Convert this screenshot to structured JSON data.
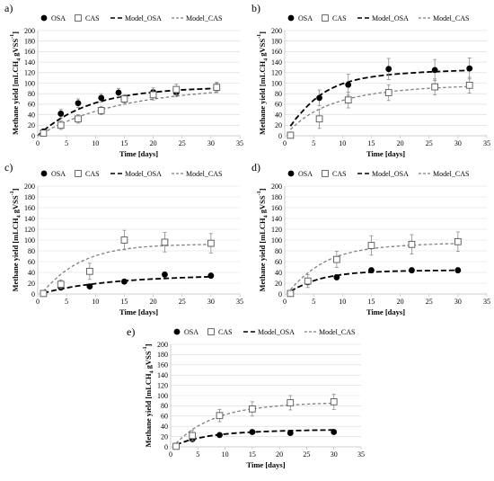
{
  "colors": {
    "osa": "#000000",
    "cas": "#808080",
    "grid": "#d9d9d9",
    "axis": "#bfbfbf",
    "error": "#8c8c8c"
  },
  "marker_styles": {
    "osa": "filled-circle",
    "cas": "open-square"
  },
  "chart_data": [
    {
      "type": "scatter",
      "panel": "a)",
      "xlabel": "Time [days]",
      "ylabel": "Methane yield [mLCH",
      "ylabel_sub": "4",
      "ylabel_tail": " gVSS",
      "ylabel_sup": "-1",
      "ylabel_end": "]",
      "xlim": [
        0,
        35
      ],
      "ylim": [
        0,
        200
      ],
      "xticks": [
        "0",
        "5",
        "10",
        "15",
        "20",
        "25",
        "30",
        "35"
      ],
      "yticks": [
        "0",
        "20",
        "40",
        "60",
        "80",
        "100",
        "120",
        "140",
        "160",
        "180",
        "200"
      ],
      "legend": [
        "OSA",
        "CAS",
        "Model_OSA",
        "Model_CAS"
      ],
      "legend_position": "top",
      "grid": true,
      "series": [
        {
          "name": "OSA",
          "x": [
            1,
            4,
            7,
            11,
            14,
            20,
            24,
            31
          ],
          "y": [
            8,
            42,
            62,
            72,
            82,
            83,
            82,
            92
          ],
          "err": [
            5,
            8,
            8,
            8,
            8,
            8,
            8,
            8
          ]
        },
        {
          "name": "CAS",
          "x": [
            1,
            4,
            7,
            11,
            15,
            20,
            24,
            31
          ],
          "y": [
            5,
            20,
            32,
            48,
            70,
            78,
            88,
            92
          ],
          "err": [
            4,
            8,
            8,
            8,
            8,
            10,
            10,
            10
          ]
        },
        {
          "name": "Model_OSA",
          "x": [
            0,
            1,
            2,
            3,
            4,
            5,
            6,
            7,
            8,
            9,
            10,
            12,
            14,
            16,
            18,
            20,
            22,
            24,
            26,
            28,
            30,
            31
          ],
          "y": [
            0,
            9.7,
            18.4,
            26.2,
            33.2,
            39.5,
            45.1,
            50.2,
            54.7,
            58.8,
            62.5,
            68.6,
            73.3,
            77.2,
            80.3,
            82.8,
            84.8,
            86.5,
            87.8,
            88.8,
            89.7,
            90.0
          ]
        },
        {
          "name": "Model_CAS",
          "x": [
            0,
            1,
            2,
            3,
            4,
            5,
            6,
            7,
            8,
            9,
            10,
            12,
            14,
            16,
            18,
            20,
            22,
            24,
            26,
            28,
            30,
            31
          ],
          "y": [
            0,
            6.2,
            12,
            17.4,
            22.5,
            27.2,
            31.6,
            35.7,
            39.6,
            43.2,
            46.5,
            52.5,
            57.8,
            62.4,
            66.4,
            69.9,
            72.9,
            75.6,
            77.9,
            79.9,
            81.7,
            82.5
          ]
        }
      ]
    },
    {
      "type": "scatter",
      "panel": "b)",
      "xlabel": "Time [days]",
      "ylabel": "Methane yield [mLCH",
      "ylabel_sub": "4",
      "ylabel_tail": " gVSS",
      "ylabel_sup": "-1",
      "ylabel_end": "]",
      "xlim": [
        0,
        35
      ],
      "ylim": [
        0,
        200
      ],
      "xticks": [
        "0",
        "5",
        "10",
        "15",
        "20",
        "25",
        "30",
        "35"
      ],
      "yticks": [
        "0",
        "20",
        "40",
        "60",
        "80",
        "100",
        "120",
        "140",
        "160",
        "180",
        "200"
      ],
      "legend": [
        "OSA",
        "CAS",
        "Model_OSA",
        "Model_CAS"
      ],
      "legend_position": "top",
      "grid": true,
      "series": [
        {
          "name": "OSA",
          "x": [
            1,
            6,
            11,
            18,
            26,
            32
          ],
          "y": [
            2,
            72,
            97,
            127,
            125,
            128
          ],
          "err": [
            3,
            15,
            20,
            20,
            20,
            20
          ]
        },
        {
          "name": "CAS",
          "x": [
            1,
            6,
            11,
            18,
            26,
            32
          ],
          "y": [
            1,
            32,
            68,
            82,
            93,
            96
          ],
          "err": [
            3,
            18,
            15,
            15,
            15,
            15
          ]
        },
        {
          "name": "Model_OSA",
          "x": [
            1,
            2,
            3,
            4,
            5,
            6,
            7,
            8,
            9,
            10,
            12,
            14,
            16,
            18,
            20,
            22,
            24,
            26,
            28,
            30,
            32
          ],
          "y": [
            18.5,
            33.4,
            45.6,
            57.3,
            67.6,
            76.2,
            83.4,
            89.5,
            94.6,
            99,
            105.4,
            110,
            113.4,
            116.1,
            118,
            119.5,
            120.8,
            121.8,
            122.8,
            123.6,
            124.3
          ]
        },
        {
          "name": "Model_CAS",
          "x": [
            1,
            2,
            3,
            4,
            5,
            6,
            7,
            8,
            9,
            10,
            12,
            14,
            16,
            18,
            20,
            22,
            24,
            26,
            28,
            30,
            32
          ],
          "y": [
            12,
            22,
            31,
            38.6,
            45,
            50.8,
            55.7,
            60,
            63.8,
            67.2,
            72.8,
            77.3,
            80.8,
            83.7,
            86,
            87.9,
            89.5,
            90.8,
            91.9,
            92.8,
            93.6
          ]
        }
      ]
    },
    {
      "type": "scatter",
      "panel": "c)",
      "xlabel": "Time [days]",
      "ylabel": "Methane yield [mLCH",
      "ylabel_sub": "4",
      "ylabel_tail": " gVSS",
      "ylabel_sup": "-1",
      "ylabel_end": "]",
      "xlim": [
        0,
        35
      ],
      "ylim": [
        0,
        200
      ],
      "xticks": [
        "0",
        "5",
        "10",
        "15",
        "20",
        "25",
        "30",
        "35"
      ],
      "yticks": [
        "0",
        "20",
        "40",
        "60",
        "80",
        "100",
        "120",
        "140",
        "160",
        "180",
        "200"
      ],
      "legend": [
        "OSA",
        "CAS",
        "Model_OSA",
        "Model_CAS"
      ],
      "legend_position": "top",
      "grid": true,
      "series": [
        {
          "name": "OSA",
          "x": [
            1,
            4,
            9,
            15,
            22,
            30
          ],
          "y": [
            1,
            12,
            14,
            23,
            36,
            34
          ],
          "err": [
            2,
            4,
            4,
            4,
            5,
            5
          ]
        },
        {
          "name": "CAS",
          "x": [
            1,
            4,
            9,
            15,
            22,
            30
          ],
          "y": [
            1,
            18,
            42,
            100,
            96,
            94
          ],
          "err": [
            3,
            8,
            15,
            18,
            18,
            18
          ]
        },
        {
          "name": "Model_OSA",
          "x": [
            1,
            2,
            3,
            4,
            5,
            6,
            7,
            8,
            9,
            10,
            12,
            14,
            16,
            18,
            20,
            22,
            24,
            26,
            28,
            30
          ],
          "y": [
            1.5,
            4.5,
            7,
            9.3,
            11.4,
            13.3,
            15,
            16.5,
            17.9,
            19.2,
            21.5,
            23.5,
            25.2,
            26.6,
            27.9,
            28.9,
            29.9,
            30.7,
            31.4,
            32
          ]
        },
        {
          "name": "Model_CAS",
          "x": [
            1,
            2,
            3,
            4,
            5,
            6,
            7,
            8,
            9,
            10,
            12,
            14,
            16,
            18,
            20,
            22,
            24,
            26,
            28,
            30
          ],
          "y": [
            5,
            17,
            27,
            36.5,
            44.5,
            51.5,
            57.5,
            62.5,
            67,
            71,
            77,
            81.5,
            84.5,
            87,
            88.5,
            89.5,
            90.5,
            91,
            91.5,
            92
          ]
        }
      ]
    },
    {
      "type": "scatter",
      "panel": "d)",
      "xlabel": "Time [days]",
      "ylabel": "Methane yield [mLCH",
      "ylabel_sub": "4",
      "ylabel_tail": " gVSS",
      "ylabel_sup": "-1",
      "ylabel_end": "]",
      "xlim": [
        0,
        35
      ],
      "ylim": [
        0,
        200
      ],
      "xticks": [
        "0",
        "5",
        "10",
        "15",
        "20",
        "25",
        "30",
        "35"
      ],
      "yticks": [
        "0",
        "20",
        "40",
        "60",
        "80",
        "100",
        "120",
        "140",
        "160",
        "180",
        "200"
      ],
      "legend": [
        "OSA",
        "CAS",
        "Model_OSA",
        "Model_CAS"
      ],
      "legend_position": "top",
      "grid": true,
      "series": [
        {
          "name": "OSA",
          "x": [
            1,
            4,
            9,
            15,
            22,
            30
          ],
          "y": [
            1,
            22,
            31,
            44,
            44,
            44
          ],
          "err": [
            2,
            5,
            5,
            5,
            5,
            5
          ]
        },
        {
          "name": "CAS",
          "x": [
            1,
            4,
            9,
            15,
            22,
            30
          ],
          "y": [
            1,
            24,
            64,
            90,
            92,
            97
          ],
          "err": [
            3,
            12,
            15,
            18,
            18,
            18
          ]
        },
        {
          "name": "Model_OSA",
          "x": [
            1,
            2,
            3,
            4,
            5,
            6,
            7,
            8,
            9,
            10,
            12,
            14,
            16,
            18,
            20,
            22,
            24,
            26,
            28,
            30
          ],
          "y": [
            5,
            11,
            16,
            20.5,
            24.5,
            28,
            30.5,
            32.5,
            34.5,
            36,
            38.5,
            40,
            41,
            42,
            42.5,
            43,
            43.2,
            43.5,
            43.7,
            44
          ]
        },
        {
          "name": "Model_CAS",
          "x": [
            1,
            2,
            3,
            4,
            5,
            6,
            7,
            8,
            9,
            10,
            12,
            14,
            16,
            18,
            20,
            22,
            24,
            26,
            28,
            30
          ],
          "y": [
            8,
            20,
            30,
            39,
            47,
            54,
            60,
            65,
            69.5,
            73,
            78.5,
            82.5,
            85.5,
            87.5,
            89,
            90.5,
            91.5,
            92.3,
            93,
            93.5
          ]
        }
      ]
    },
    {
      "type": "scatter",
      "panel": "e)",
      "xlabel": "Time [days]",
      "ylabel": "Methane yield [mLCH",
      "ylabel_sub": "4",
      "ylabel_tail": " gVSS",
      "ylabel_sup": "-1",
      "ylabel_end": "]",
      "xlim": [
        0,
        35
      ],
      "ylim": [
        0,
        200
      ],
      "xticks": [
        "0",
        "5",
        "10",
        "15",
        "20",
        "25",
        "30",
        "35"
      ],
      "yticks": [
        "0",
        "20",
        "40",
        "60",
        "80",
        "100",
        "120",
        "140",
        "160",
        "180",
        "200"
      ],
      "legend": [
        "OSA",
        "CAS",
        "Model_OSA",
        "Model_CAS"
      ],
      "legend_position": "top",
      "grid": true,
      "series": [
        {
          "name": "OSA",
          "x": [
            1,
            4,
            9,
            15,
            22,
            30
          ],
          "y": [
            1,
            15,
            23,
            29,
            27,
            29
          ],
          "err": [
            2,
            4,
            4,
            4,
            4,
            4
          ]
        },
        {
          "name": "CAS",
          "x": [
            1,
            4,
            9,
            15,
            22,
            30
          ],
          "y": [
            1,
            22,
            61,
            74,
            86,
            88
          ],
          "err": [
            3,
            10,
            12,
            14,
            14,
            15
          ]
        },
        {
          "name": "Model_OSA",
          "x": [
            1,
            2,
            3,
            4,
            5,
            6,
            7,
            8,
            9,
            10,
            12,
            14,
            16,
            18,
            20,
            22,
            24,
            26,
            28,
            30
          ],
          "y": [
            4,
            8,
            11.5,
            14.5,
            17,
            19,
            21,
            22.5,
            24,
            25,
            26.8,
            28.2,
            29.3,
            30.2,
            30.9,
            31.5,
            32,
            32.4,
            32.7,
            33
          ]
        },
        {
          "name": "Model_CAS",
          "x": [
            1,
            2,
            3,
            4,
            5,
            6,
            7,
            8,
            9,
            10,
            12,
            14,
            16,
            18,
            20,
            22,
            24,
            26,
            28,
            30
          ],
          "y": [
            7,
            17,
            26,
            34,
            40.5,
            46,
            51,
            55.5,
            59.5,
            63,
            68.5,
            72.5,
            75.5,
            78,
            80,
            81.5,
            82.8,
            83.8,
            84.6,
            85.2
          ]
        }
      ]
    }
  ]
}
